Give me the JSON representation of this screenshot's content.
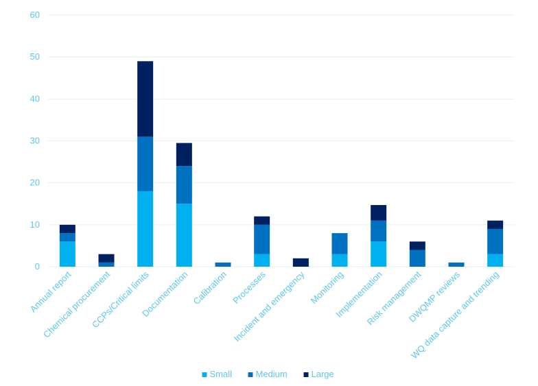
{
  "chart_data": {
    "type": "bar",
    "stacked": true,
    "title": "",
    "xlabel": "",
    "ylabel": "",
    "ylim": [
      0,
      60
    ],
    "yticks": [
      0,
      10,
      20,
      30,
      40,
      50,
      60
    ],
    "grid": true,
    "legend_position": "bottom",
    "categories": [
      "Annual report",
      "Chemical procurement",
      "CCPs/Critical limits",
      "Documentation",
      "Calibration",
      "Processes",
      "Incident and emergency",
      "Monitoring",
      "Implementation",
      "Risk management",
      "DWQMP reviews",
      "WQ data capture and trending"
    ],
    "series": [
      {
        "name": "Small",
        "color": "#00B0F0",
        "values": [
          6,
          0,
          18,
          15,
          0,
          3,
          0,
          3,
          6,
          0,
          0,
          3
        ]
      },
      {
        "name": "Medium",
        "color": "#0070C0",
        "values": [
          2,
          1,
          13,
          9,
          1,
          7,
          0,
          5,
          5,
          4,
          1,
          6
        ]
      },
      {
        "name": "Large",
        "color": "#002060",
        "values": [
          2,
          2,
          18,
          5.5,
          0,
          2,
          2,
          0,
          3.7,
          2,
          0,
          2
        ]
      }
    ],
    "axis_text_color": "#5BC8EA",
    "grid_color": "#E3F1F7"
  }
}
